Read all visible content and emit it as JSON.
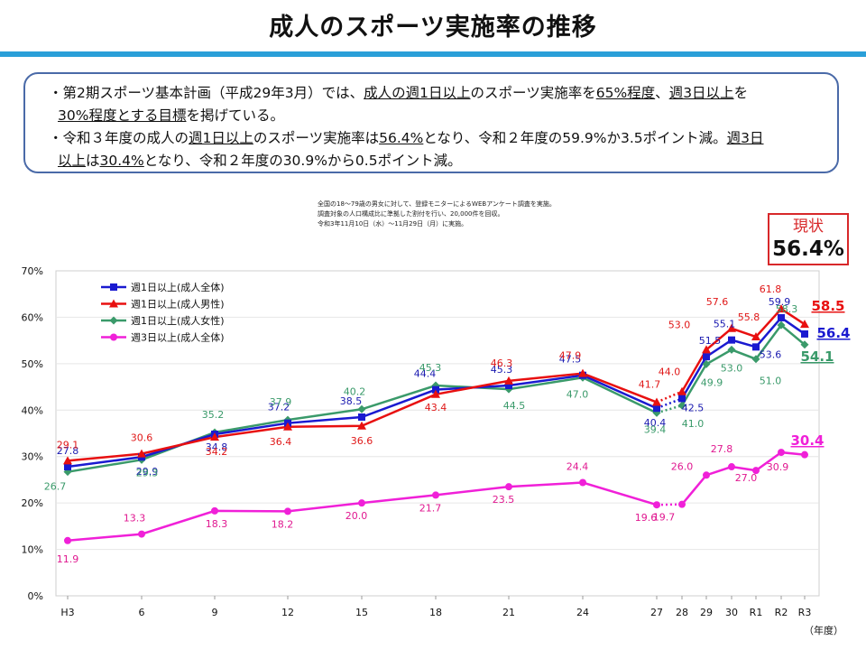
{
  "title": "成人のスポーツ実施率の推移",
  "notes": {
    "line1": [
      {
        "t": "・第2期スポーツ基本計画（平成29年3月）では、",
        "u": false
      },
      {
        "t": "成人の週1日以上",
        "u": true
      },
      {
        "t": "のスポーツ実施率を",
        "u": false
      },
      {
        "t": "65%程度",
        "u": true
      },
      {
        "t": "、",
        "u": false
      },
      {
        "t": "週3日以上",
        "u": true
      },
      {
        "t": "を",
        "u": false
      }
    ],
    "line2": [
      {
        "t": "30%程度とする目標",
        "u": true
      },
      {
        "t": "を掲げている。",
        "u": false
      }
    ],
    "line3": [
      {
        "t": "・令和３年度の成人の",
        "u": false
      },
      {
        "t": "週1日以上",
        "u": true
      },
      {
        "t": "のスポーツ実施率は",
        "u": false
      },
      {
        "t": "56.4%",
        "u": true
      },
      {
        "t": "となり、令和２年度の59.9%か3.5ポイント減。",
        "u": false
      },
      {
        "t": "週3日",
        "u": true
      }
    ],
    "line4": [
      {
        "t": "以上",
        "u": true
      },
      {
        "t": "は",
        "u": false
      },
      {
        "t": "30.4%",
        "u": true
      },
      {
        "t": "となり、令和２年度の30.9%から0.5ポイント減。",
        "u": false
      }
    ]
  },
  "survey_note": [
    "全国の18～79歳の男女に対して、登録モニターによるWEBアンケート調査を実施。",
    "調査対象の人口構成比に準拠した割付を行い、20,000件を回収。",
    "令和3年11月10日（水）～11月29日（月）に実施。"
  ],
  "callout": {
    "label": "現状",
    "value": "56.4%"
  },
  "chart_data": {
    "type": "line",
    "x": [
      "H3",
      "6",
      "9",
      "12",
      "15",
      "18",
      "21",
      "24",
      "27",
      "28",
      "29",
      "30",
      "R1",
      "R2",
      "R3"
    ],
    "xlabel": "（年度）",
    "ylim": [
      0,
      70
    ],
    "yticks": [
      "0%",
      "10%",
      "20%",
      "30%",
      "40%",
      "50%",
      "60%",
      "70%"
    ],
    "legend_position": "top-left",
    "series": [
      {
        "name": "週1日以上(成人全体)",
        "color": "#1a1ad0",
        "label_color": "#1a1ab0",
        "marker": "square",
        "values": [
          27.8,
          29.9,
          34.8,
          37.2,
          38.5,
          44.4,
          45.3,
          47.5,
          40.4,
          42.5,
          51.5,
          55.1,
          53.6,
          59.9,
          56.4
        ],
        "end_label": "56.4"
      },
      {
        "name": "週1日以上(成人男性)",
        "color": "#e81010",
        "label_color": "#e01818",
        "marker": "triangle",
        "values": [
          29.1,
          30.6,
          34.2,
          36.4,
          36.6,
          43.4,
          46.3,
          47.9,
          41.7,
          44.0,
          53.0,
          57.6,
          55.8,
          61.8,
          58.5
        ],
        "end_label": "58.5"
      },
      {
        "name": "週1日以上(成人女性)",
        "color": "#3a9a6a",
        "label_color": "#3a9a6a",
        "marker": "diamond",
        "values": [
          26.7,
          29.3,
          35.2,
          37.9,
          40.2,
          45.3,
          44.5,
          47.0,
          39.4,
          41.0,
          49.9,
          53.0,
          51.0,
          58.3,
          54.1
        ],
        "end_label": "54.1"
      },
      {
        "name": "週3日以上(成人全体)",
        "color": "#f020d8",
        "label_color": "#e01890",
        "marker": "circle",
        "values": [
          11.9,
          13.3,
          18.3,
          18.2,
          20.0,
          21.7,
          23.5,
          24.4,
          19.6,
          19.7,
          26.0,
          27.8,
          27.0,
          30.9,
          30.4
        ],
        "end_label": "30.4"
      }
    ]
  }
}
